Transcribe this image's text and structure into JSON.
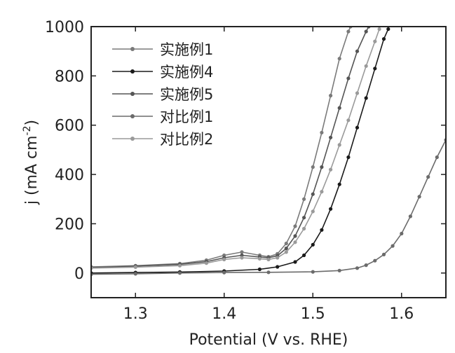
{
  "chart_data": {
    "type": "line",
    "title": "",
    "xlabel": "Potential (V vs. RHE)",
    "ylabel": "j (mA cm-2)",
    "ylabel_parts": {
      "main": "j (mA cm",
      "sup": "-2",
      "close": ")"
    },
    "xlim": [
      1.25,
      1.65
    ],
    "ylim": [
      -100,
      1000
    ],
    "xticks": [
      1.3,
      1.4,
      1.5,
      1.6
    ],
    "xtick_labels": [
      "1.3",
      "1.4",
      "1.5",
      "1.6"
    ],
    "yticks": [
      0,
      200,
      400,
      600,
      800,
      1000
    ],
    "ytick_labels": [
      "0",
      "200",
      "400",
      "600",
      "800",
      "1000"
    ],
    "legend_position": "top-left",
    "grid": false,
    "series": [
      {
        "name": "实施例1",
        "color": "#7a7a7a",
        "marker": "circle",
        "x": [
          1.25,
          1.3,
          1.35,
          1.38,
          1.4,
          1.42,
          1.44,
          1.45,
          1.46,
          1.47,
          1.48,
          1.49,
          1.5,
          1.51,
          1.52,
          1.53,
          1.54,
          1.5425
        ],
        "y": [
          25,
          30,
          38,
          52,
          72,
          85,
          72,
          66,
          78,
          120,
          190,
          300,
          430,
          570,
          720,
          870,
          980,
          1000
        ]
      },
      {
        "name": "实施例4",
        "color": "#1a1a1a",
        "marker": "circle",
        "x": [
          1.25,
          1.3,
          1.35,
          1.4,
          1.44,
          1.46,
          1.48,
          1.49,
          1.5,
          1.51,
          1.52,
          1.53,
          1.54,
          1.55,
          1.56,
          1.57,
          1.58,
          1.585
        ],
        "y": [
          0,
          2,
          4,
          8,
          15,
          25,
          45,
          72,
          115,
          175,
          260,
          360,
          470,
          590,
          710,
          830,
          950,
          990
        ]
      },
      {
        "name": "实施例5",
        "color": "#555555",
        "marker": "circle",
        "x": [
          1.25,
          1.3,
          1.35,
          1.38,
          1.4,
          1.42,
          1.44,
          1.45,
          1.46,
          1.47,
          1.48,
          1.49,
          1.5,
          1.51,
          1.52,
          1.53,
          1.54,
          1.55,
          1.56,
          1.563
        ],
        "y": [
          22,
          28,
          35,
          46,
          62,
          72,
          65,
          62,
          70,
          100,
          150,
          225,
          320,
          430,
          550,
          670,
          790,
          900,
          980,
          1000
        ]
      },
      {
        "name": "对比例1",
        "color": "#6b6b6b",
        "marker": "circle",
        "x": [
          1.25,
          1.3,
          1.35,
          1.4,
          1.45,
          1.5,
          1.53,
          1.55,
          1.56,
          1.57,
          1.58,
          1.59,
          1.6,
          1.61,
          1.62,
          1.63,
          1.64,
          1.65
        ],
        "y": [
          -5,
          -3,
          0,
          2,
          3,
          5,
          10,
          20,
          32,
          50,
          75,
          110,
          160,
          230,
          310,
          390,
          470,
          540
        ]
      },
      {
        "name": "对比例2",
        "color": "#9a9a9a",
        "marker": "circle",
        "x": [
          1.25,
          1.3,
          1.35,
          1.38,
          1.4,
          1.42,
          1.44,
          1.45,
          1.46,
          1.47,
          1.48,
          1.49,
          1.5,
          1.51,
          1.52,
          1.53,
          1.54,
          1.55,
          1.56,
          1.57,
          1.575
        ],
        "y": [
          20,
          24,
          30,
          40,
          55,
          62,
          58,
          55,
          62,
          85,
          125,
          180,
          250,
          330,
          420,
          520,
          620,
          730,
          840,
          940,
          990
        ]
      }
    ]
  }
}
